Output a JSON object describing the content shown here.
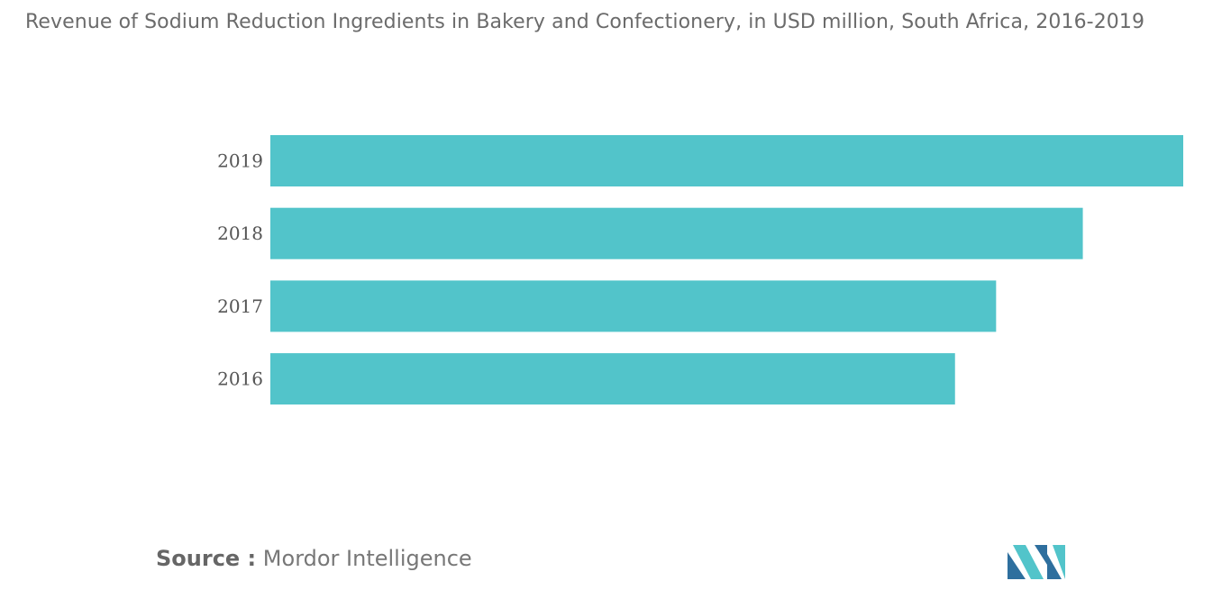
{
  "chart_data": {
    "type": "bar",
    "orientation": "horizontal",
    "title": "Revenue of Sodium Reduction Ingredients in Bakery and Confectionery, in USD million, South Africa, 2016-2019",
    "categories": [
      "2019",
      "2018",
      "2017",
      "2016"
    ],
    "values": [
      100,
      89,
      79.5,
      75
    ],
    "xlim": [
      0,
      100
    ],
    "grid": false,
    "legend": "none",
    "bar_color": "#52C4CA"
  },
  "source": {
    "label": "Source :",
    "text": "Mordor Intelligence"
  },
  "logo": {
    "name": "mordor-intelligence-logo",
    "colors": [
      "#2E6F9E",
      "#52C4CA"
    ]
  }
}
